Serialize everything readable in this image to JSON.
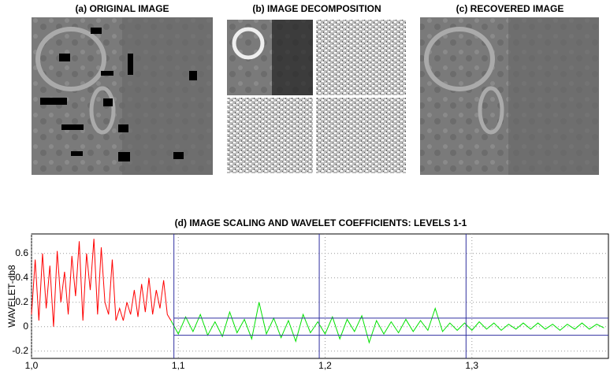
{
  "panels": [
    {
      "title": "(a) ORIGINAL IMAGE"
    },
    {
      "title": "(b) IMAGE DECOMPOSITION"
    },
    {
      "title": "(c) RECOVERED IMAGE"
    }
  ],
  "chart_data": {
    "type": "line",
    "title": "(d) IMAGE SCALING AND WAVELET COEFFICIENTS: LEVELS 1-1",
    "y_label": "WAVELET-db8",
    "xlim": [
      1.0,
      1.393
    ],
    "ylim": [
      -0.26,
      0.76
    ],
    "xticks": [
      {
        "value": 1.0,
        "label": "1,0"
      },
      {
        "value": 1.1,
        "label": "1,1"
      },
      {
        "value": 1.2,
        "label": "1,2"
      },
      {
        "value": 1.3,
        "label": "1,3"
      }
    ],
    "yticks": [
      0.6,
      0.4,
      0.2,
      0,
      -0.2
    ],
    "grid": true,
    "vlines": [
      1.097,
      1.196,
      1.296
    ],
    "hlines": [
      0.07,
      -0.07
    ],
    "line_color": "#3030a0",
    "series": [
      {
        "color": "#ff0000",
        "x": [
          1,
          1.0025,
          1.005,
          1.0075,
          1.01,
          1.0125,
          1.015,
          1.0175,
          1.02,
          1.0225,
          1.025,
          1.0275,
          1.03,
          1.0325,
          1.035,
          1.0375,
          1.04,
          1.0425,
          1.045,
          1.0475,
          1.05,
          1.0525,
          1.055,
          1.0575,
          1.06,
          1.0625,
          1.065,
          1.0675,
          1.07,
          1.0725,
          1.075,
          1.0775,
          1.08,
          1.0825,
          1.085,
          1.0875,
          1.09,
          1.0925,
          1.095
        ],
        "values": [
          0.1,
          0.55,
          0.05,
          0.6,
          0.15,
          0.5,
          0.0,
          0.62,
          0.2,
          0.45,
          0.1,
          0.58,
          0.25,
          0.7,
          0.05,
          0.6,
          0.3,
          0.72,
          0.1,
          0.65,
          0.2,
          0.1,
          0.55,
          0.05,
          0.15,
          0.05,
          0.2,
          0.1,
          0.3,
          0.08,
          0.35,
          0.12,
          0.4,
          0.1,
          0.3,
          0.15,
          0.38,
          0.1,
          0.05
        ]
      },
      {
        "color": "#00e000",
        "x": [
          1.095,
          1.1,
          1.105,
          1.11,
          1.115,
          1.12,
          1.125,
          1.13,
          1.135,
          1.14,
          1.145,
          1.15,
          1.155,
          1.16,
          1.165,
          1.17,
          1.175,
          1.18,
          1.185,
          1.19,
          1.195,
          1.2,
          1.205,
          1.21,
          1.215,
          1.22,
          1.225,
          1.23,
          1.235,
          1.24,
          1.245,
          1.25,
          1.255,
          1.26,
          1.265,
          1.27,
          1.275,
          1.28,
          1.285,
          1.29,
          1.295,
          1.3,
          1.305,
          1.31,
          1.315,
          1.32,
          1.325,
          1.33,
          1.335,
          1.34,
          1.345,
          1.35,
          1.355,
          1.36,
          1.365,
          1.37,
          1.375,
          1.38,
          1.385,
          1.39
        ],
        "values": [
          0.05,
          -0.06,
          0.08,
          -0.04,
          0.1,
          -0.07,
          0.04,
          -0.08,
          0.12,
          -0.05,
          0.06,
          -0.1,
          0.2,
          -0.06,
          0.07,
          -0.09,
          0.05,
          -0.12,
          0.1,
          -0.05,
          0.04,
          -0.06,
          0.08,
          -0.1,
          0.06,
          -0.04,
          0.09,
          -0.13,
          0.05,
          -0.06,
          0.04,
          -0.05,
          0.06,
          -0.04,
          0.05,
          -0.03,
          0.15,
          -0.04,
          0.03,
          -0.03,
          0.03,
          -0.03,
          0.04,
          -0.02,
          0.03,
          -0.03,
          0.02,
          -0.02,
          0.03,
          -0.02,
          0.03,
          -0.02,
          0.02,
          -0.03,
          0.02,
          -0.02,
          0.03,
          -0.02,
          0.02,
          -0.01
        ]
      }
    ]
  }
}
